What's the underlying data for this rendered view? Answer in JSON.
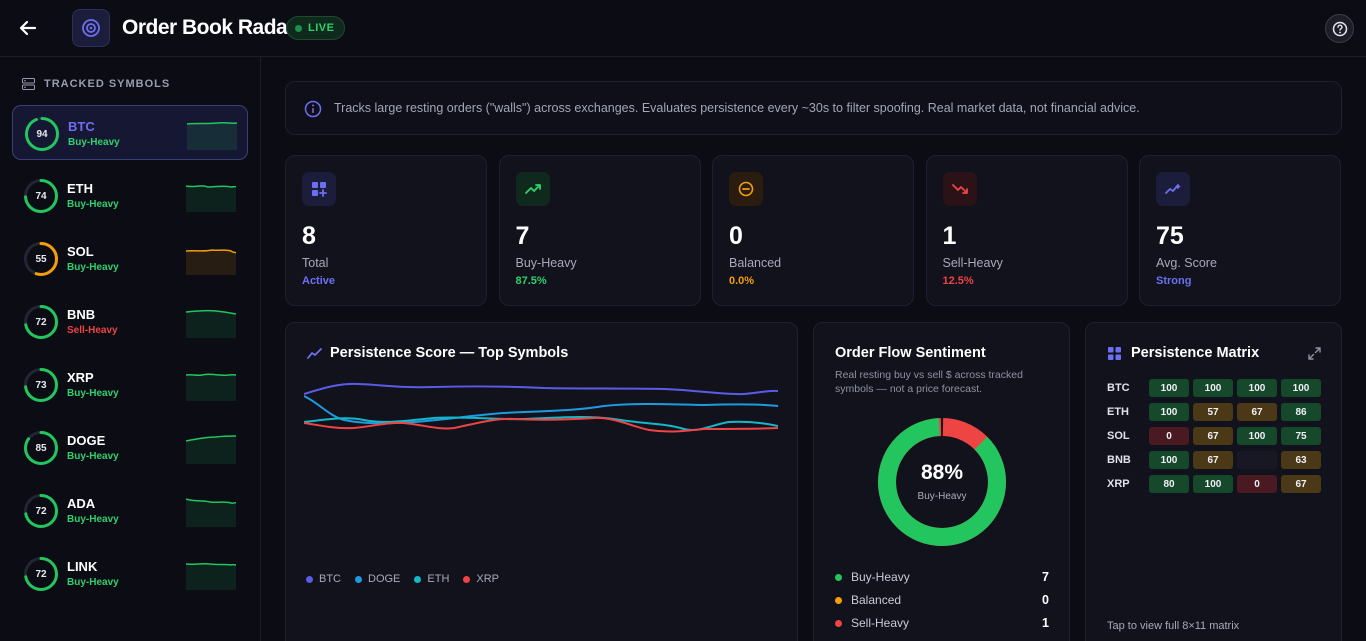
{
  "app": {
    "title": "Order Book Radar",
    "live_label": "LIVE"
  },
  "sidebar": {
    "heading": "TRACKED SYMBOLS",
    "items": [
      {
        "symbol": "BTC",
        "score": "94",
        "status": "Buy-Heavy",
        "status_color": "#2fd06e",
        "ring_color": "#22c55e",
        "fraction": 0.94
      },
      {
        "symbol": "ETH",
        "score": "74",
        "status": "Buy-Heavy",
        "status_color": "#2fd06e",
        "ring_color": "#22c55e",
        "fraction": 0.74
      },
      {
        "symbol": "SOL",
        "score": "55",
        "status": "Buy-Heavy",
        "status_color": "#2fd06e",
        "ring_color": "#f59e0b",
        "fraction": 0.55
      },
      {
        "symbol": "BNB",
        "score": "72",
        "status": "Sell-Heavy",
        "status_color": "#ef4444",
        "ring_color": "#22c55e",
        "fraction": 0.72
      },
      {
        "symbol": "XRP",
        "score": "73",
        "status": "Buy-Heavy",
        "status_color": "#2fd06e",
        "ring_color": "#22c55e",
        "fraction": 0.73
      },
      {
        "symbol": "DOGE",
        "score": "85",
        "status": "Buy-Heavy",
        "status_color": "#2fd06e",
        "ring_color": "#22c55e",
        "fraction": 0.85
      },
      {
        "symbol": "ADA",
        "score": "72",
        "status": "Buy-Heavy",
        "status_color": "#2fd06e",
        "ring_color": "#22c55e",
        "fraction": 0.72
      },
      {
        "symbol": "LINK",
        "score": "72",
        "status": "Buy-Heavy",
        "status_color": "#2fd06e",
        "ring_color": "#22c55e",
        "fraction": 0.72
      }
    ]
  },
  "info": {
    "text": "Tracks large resting orders (\"walls\") across exchanges. Evaluates persistence every ~30s to filter spoofing. Real market data, not financial advice."
  },
  "stats": [
    {
      "value": "8",
      "label": "Total",
      "sub": "Active",
      "sub_color": "#6d6ff2",
      "icon": "grid-plus-icon"
    },
    {
      "value": "7",
      "label": "Buy-Heavy",
      "sub": "87.5%",
      "sub_color": "#2fd06e",
      "icon": "trend-up-icon"
    },
    {
      "value": "0",
      "label": "Balanced",
      "sub": "0.0%",
      "sub_color": "#f59e0b",
      "icon": "minus-circle-icon"
    },
    {
      "value": "1",
      "label": "Sell-Heavy",
      "sub": "12.5%",
      "sub_color": "#ef4444",
      "icon": "trend-down-icon"
    },
    {
      "value": "75",
      "label": "Avg. Score",
      "sub": "Strong",
      "sub_color": "#6d6ff2",
      "icon": "sparkle-trend-icon"
    }
  ],
  "persistence": {
    "title": "Persistence Score — Top Symbols",
    "legend": [
      {
        "name": "BTC",
        "color": "#5b5be8"
      },
      {
        "name": "DOGE",
        "color": "#1e9be0"
      },
      {
        "name": "ETH",
        "color": "#14b8c8"
      },
      {
        "name": "XRP",
        "color": "#ef4444"
      }
    ]
  },
  "sentiment": {
    "title": "Order Flow Sentiment",
    "subtitle": "Real resting buy vs sell $ across tracked symbols — not a price forecast.",
    "center_value": "88%",
    "center_label": "Buy-Heavy",
    "buy_fraction": 0.875,
    "rows": [
      {
        "label": "Buy-Heavy",
        "count": "7",
        "color": "#22c55e"
      },
      {
        "label": "Balanced",
        "count": "0",
        "color": "#f59e0b"
      },
      {
        "label": "Sell-Heavy",
        "count": "1",
        "color": "#ef4444"
      }
    ]
  },
  "matrix": {
    "title": "Persistence Matrix",
    "footer": "Tap to view full 8×11 matrix",
    "rows": [
      {
        "symbol": "BTC",
        "cells": [
          {
            "v": "100",
            "t": "g"
          },
          {
            "v": "100",
            "t": "g"
          },
          {
            "v": "100",
            "t": "g"
          },
          {
            "v": "100",
            "t": "g"
          }
        ]
      },
      {
        "symbol": "ETH",
        "cells": [
          {
            "v": "100",
            "t": "g"
          },
          {
            "v": "57",
            "t": "o"
          },
          {
            "v": "67",
            "t": "o"
          },
          {
            "v": "86",
            "t": "g"
          }
        ]
      },
      {
        "symbol": "SOL",
        "cells": [
          {
            "v": "0",
            "t": "r"
          },
          {
            "v": "67",
            "t": "o"
          },
          {
            "v": "100",
            "t": "g"
          },
          {
            "v": "75",
            "t": "g"
          }
        ]
      },
      {
        "symbol": "BNB",
        "cells": [
          {
            "v": "100",
            "t": "g"
          },
          {
            "v": "67",
            "t": "o"
          },
          {
            "v": "",
            "t": "e"
          },
          {
            "v": "63",
            "t": "o"
          }
        ]
      },
      {
        "symbol": "XRP",
        "cells": [
          {
            "v": "80",
            "t": "g"
          },
          {
            "v": "100",
            "t": "g"
          },
          {
            "v": "0",
            "t": "r"
          },
          {
            "v": "67",
            "t": "o"
          }
        ]
      }
    ]
  }
}
